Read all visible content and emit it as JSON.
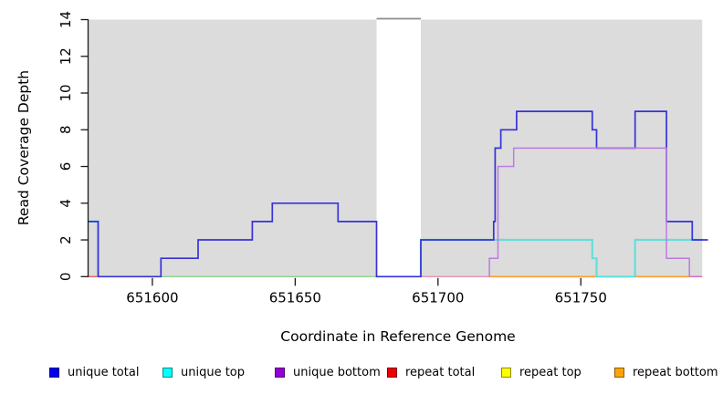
{
  "chart_data": {
    "type": "line",
    "subtype": "step-coverage",
    "title": "",
    "xlabel": "Coordinate in Reference Genome",
    "ylabel": "Read Coverage Depth",
    "xlim": [
      651577.5,
      651794.5
    ],
    "ylim": [
      0,
      14
    ],
    "xticks": [
      651600,
      651650,
      651700,
      651750
    ],
    "yticks": [
      0,
      2,
      4,
      6,
      8,
      10,
      12,
      14
    ],
    "grid": false,
    "legend_position": "bottom",
    "colors": {
      "background": "#ffffff",
      "region_fill": "#dcdcdc",
      "gap_cap": "#8c8c8c",
      "axis": "#1a1a1a",
      "tick_text": "#000000"
    },
    "coverage_regions": [
      {
        "from": 651577.5,
        "to": 651678.5
      },
      {
        "from": 651694,
        "to": 651792.5
      }
    ],
    "gap_cap": {
      "from": 651678.5,
      "to": 651694,
      "at_value": 14
    },
    "baseline_segments": [
      {
        "from": 651581,
        "to": 651678.5,
        "color": "#8bd48b"
      },
      {
        "from": 651694,
        "to": 651718,
        "color": "#e891b5"
      },
      {
        "from": 651788,
        "to": 651792.5,
        "color": "#d964c9"
      }
    ],
    "series": [
      {
        "key": "unique_total",
        "label": "unique total",
        "line_color": "#3732d9",
        "legend_color": "#0000ee",
        "line_width": 1.7,
        "paths": [
          [
            [
              651577.5,
              3
            ],
            [
              651581,
              3
            ],
            [
              651581,
              0
            ],
            [
              651603,
              0
            ],
            [
              651603,
              1
            ],
            [
              651616,
              1
            ],
            [
              651616,
              2
            ],
            [
              651635,
              2
            ],
            [
              651635,
              3
            ],
            [
              651642,
              3
            ],
            [
              651642,
              4
            ],
            [
              651665,
              4
            ],
            [
              651665,
              3
            ],
            [
              651678.5,
              3
            ],
            [
              651678.5,
              0
            ],
            [
              651694,
              0
            ],
            [
              651694,
              2
            ],
            [
              651719.5,
              2
            ],
            [
              651719.5,
              3
            ],
            [
              651720,
              3
            ],
            [
              651720,
              7
            ],
            [
              651722,
              7
            ],
            [
              651722,
              8
            ],
            [
              651727.5,
              8
            ],
            [
              651727.5,
              9
            ],
            [
              651754,
              9
            ],
            [
              651754,
              8
            ],
            [
              651755.5,
              8
            ],
            [
              651755.5,
              7
            ],
            [
              651769,
              7
            ],
            [
              651769,
              9
            ],
            [
              651780,
              9
            ],
            [
              651780,
              3
            ],
            [
              651789,
              3
            ],
            [
              651789,
              2
            ],
            [
              651794.5,
              2
            ]
          ]
        ]
      },
      {
        "key": "unique_top",
        "label": "unique top",
        "line_color": "#62e0dc",
        "legend_color": "#00ffff",
        "line_width": 2.2,
        "paths": [
          [
            [
              651577.5,
              3
            ],
            [
              651581,
              3
            ],
            [
              651581,
              0
            ]
          ],
          [
            [
              651694,
              0
            ],
            [
              651694,
              2
            ],
            [
              651754,
              2
            ],
            [
              651754,
              1
            ],
            [
              651755.5,
              1
            ],
            [
              651755.5,
              0
            ],
            [
              651769,
              0
            ],
            [
              651769,
              2
            ],
            [
              651792.5,
              2
            ]
          ]
        ]
      },
      {
        "key": "unique_bottom",
        "label": "unique bottom",
        "line_color": "#bc7be0",
        "legend_color": "#9400d3",
        "line_width": 1.5,
        "paths": [
          [
            [
              651718,
              0
            ],
            [
              651718,
              1
            ],
            [
              651721,
              1
            ],
            [
              651721,
              6
            ],
            [
              651726.5,
              6
            ],
            [
              651726.5,
              7
            ],
            [
              651780,
              7
            ],
            [
              651780,
              1
            ],
            [
              651788,
              1
            ],
            [
              651788,
              0
            ]
          ]
        ]
      },
      {
        "key": "repeat_total",
        "label": "repeat total",
        "line_color": "#ee6666",
        "legend_color": "#ee0000",
        "line_width": 1.6,
        "paths": [
          [
            [
              651577.5,
              0
            ],
            [
              651581,
              0
            ]
          ]
        ]
      },
      {
        "key": "repeat_top",
        "label": "repeat top",
        "line_color": "#ffff00",
        "legend_color": "#ffff00",
        "line_width": 1.4,
        "paths": []
      },
      {
        "key": "repeat_bottom",
        "label": "repeat bottom",
        "line_color": "#ff9d2f",
        "legend_color": "#ffa500",
        "line_width": 1.6,
        "paths": [
          [
            [
              651718,
              0
            ],
            [
              651788,
              0
            ]
          ]
        ]
      }
    ],
    "draw_order": [
      "repeat_total",
      "repeat_bottom",
      "unique_top",
      "unique_total",
      "unique_bottom"
    ]
  }
}
